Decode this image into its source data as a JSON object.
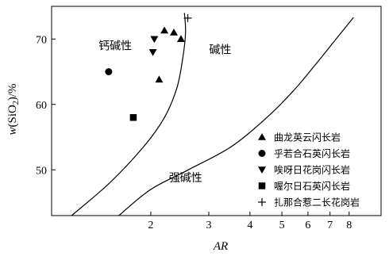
{
  "chart_data": {
    "type": "scatter",
    "title": "",
    "xlabel": "AR",
    "ylabel_var": "w",
    "ylabel_rest": "(SiO",
    "ylabel_sub": "2",
    "ylabel_tail": ")/%",
    "x_scale": "log",
    "xlim": [
      1.0,
      10.0
    ],
    "ylim": [
      43,
      75
    ],
    "x_ticks": [
      2,
      3,
      4,
      5,
      6,
      7,
      8
    ],
    "x_tick_labels": [
      "2",
      "3",
      "4",
      "5",
      "6",
      "7",
      "8"
    ],
    "y_ticks": [
      50,
      60,
      70
    ],
    "y_tick_labels": [
      "50",
      "60",
      "70"
    ],
    "grid": false,
    "legend_position": "bottom-right",
    "regions": [
      {
        "name": "钙碱性",
        "x": 1.56,
        "y": 68.4
      },
      {
        "name": "碱性",
        "x": 3.25,
        "y": 67.8
      },
      {
        "name": "强碱性",
        "x": 2.55,
        "y": 48.2
      }
    ],
    "boundaries": [
      {
        "name": "calc-alkaline/alkaline boundary",
        "points": [
          [
            1.15,
            43
          ],
          [
            1.5,
            48
          ],
          [
            1.9,
            53.5
          ],
          [
            2.2,
            58
          ],
          [
            2.4,
            62.5
          ],
          [
            2.5,
            67
          ],
          [
            2.55,
            71
          ],
          [
            2.53,
            74
          ]
        ]
      },
      {
        "name": "alkaline/strongly-alkaline boundary",
        "points": [
          [
            1.6,
            43
          ],
          [
            2.0,
            47
          ],
          [
            2.6,
            50
          ],
          [
            3.5,
            53.5
          ],
          [
            4.5,
            58
          ],
          [
            5.4,
            62
          ],
          [
            6.3,
            66
          ],
          [
            7.3,
            70
          ],
          [
            8.25,
            73.3
          ]
        ]
      }
    ],
    "series": [
      {
        "name": "曲龙英云闪长岩",
        "marker": "triangle-up",
        "points": [
          [
            2.12,
            63.8
          ],
          [
            2.2,
            71.3
          ],
          [
            2.35,
            71.0
          ],
          [
            2.47,
            70.0
          ]
        ]
      },
      {
        "name": "乎若合石英闪长岩",
        "marker": "circle",
        "points": [
          [
            1.49,
            65.0
          ]
        ]
      },
      {
        "name": "唉呀日花岗闪长岩",
        "marker": "triangle-down",
        "points": [
          [
            2.03,
            68.0
          ],
          [
            2.05,
            70.0
          ]
        ]
      },
      {
        "name": "喔尔日石英闪长岩",
        "marker": "square",
        "points": [
          [
            1.77,
            58.0
          ]
        ]
      },
      {
        "name": "扎那合惹二长花岗岩",
        "marker": "plus",
        "points": [
          [
            2.59,
            73.2
          ]
        ]
      }
    ]
  }
}
